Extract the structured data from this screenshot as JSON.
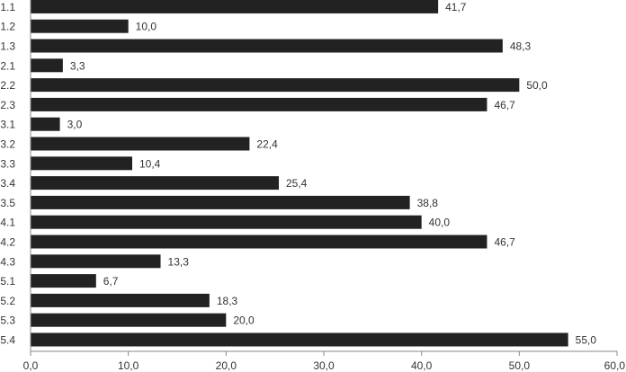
{
  "chart_data": {
    "type": "bar",
    "orientation": "horizontal",
    "categories": [
      "1.1",
      "1.2",
      "1.3",
      "2.1",
      "2.2",
      "2.3",
      "3.1",
      "3.2",
      "3.3",
      "3.4",
      "3.5",
      "4.1",
      "4.2",
      "4.3",
      "5.1",
      "5.2",
      "5.3",
      "5.4"
    ],
    "values": [
      41.7,
      10.0,
      48.3,
      3.3,
      50.0,
      46.7,
      3.0,
      22.4,
      10.4,
      25.4,
      38.8,
      40.0,
      46.7,
      13.3,
      6.7,
      18.3,
      20.0,
      55.0
    ],
    "value_labels": [
      "41,7",
      "10,0",
      "48,3",
      "3,3",
      "50,0",
      "46,7",
      "3,0",
      "22,4",
      "10,4",
      "25,4",
      "38,8",
      "40,0",
      "46,7",
      "13,3",
      "6,7",
      "18,3",
      "20,0",
      "55,0"
    ],
    "x_ticks": [
      "0,0",
      "10,0",
      "20,0",
      "30,0",
      "40,0",
      "50,0",
      "60,0"
    ],
    "xlim": [
      0,
      60
    ],
    "title": "",
    "xlabel": "",
    "ylabel": "",
    "bar_color": "#222222",
    "grid": false,
    "legend": "none"
  }
}
